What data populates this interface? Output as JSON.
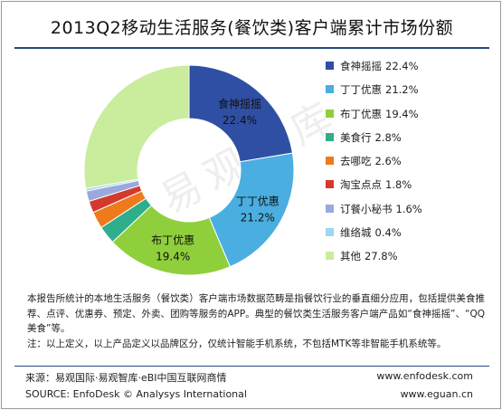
{
  "title": "2013Q2移动生活服务(餐饮类)客户端累计市场份额",
  "watermark": "易观智库",
  "chart_data": {
    "type": "pie",
    "variant": "donut",
    "title": "2013Q2移动生活服务(餐饮类)客户端累计市场份额",
    "unit": "%",
    "legend_position": "right",
    "series": [
      {
        "name": "食神摇摇",
        "value": 22.4,
        "value_label": "22.4%",
        "color": "#2e4fa3"
      },
      {
        "name": "丁丁优惠",
        "value": 21.2,
        "value_label": "21.2%",
        "color": "#4aaee0"
      },
      {
        "name": "布丁优惠",
        "value": 19.4,
        "value_label": "19.4%",
        "color": "#8fcf3c"
      },
      {
        "name": "美食行",
        "value": 2.8,
        "value_label": "2.8%",
        "color": "#2fae8c"
      },
      {
        "name": "去哪吃",
        "value": 2.6,
        "value_label": "2.6%",
        "color": "#ee7a1c"
      },
      {
        "name": "淘宝点点",
        "value": 1.8,
        "value_label": "1.8%",
        "color": "#d33a2c"
      },
      {
        "name": "订餐小秘书",
        "value": 1.6,
        "value_label": "1.6%",
        "color": "#9aa8de"
      },
      {
        "name": "维络城",
        "value": 0.4,
        "value_label": "0.4%",
        "color": "#9fd7f2"
      },
      {
        "name": "其他",
        "value": 27.8,
        "value_label": "27.8%",
        "color": "#c9ec9d"
      }
    ],
    "slice_labels": [
      {
        "name": "食神摇摇",
        "value": "22.4%"
      },
      {
        "name": "丁丁优惠",
        "value": "21.2%"
      },
      {
        "name": "布丁优惠",
        "value": "19.4%"
      }
    ]
  },
  "note": {
    "line1": "本报告所统计的本地生活服务（餐饮类）客户端市场数据范畴是指餐饮行业的垂直细分应用，包括提供美食推荐、点评、优惠券、预定、外卖、团购等服务的APP。典型的餐饮类生活服务客户端产品如“食神摇摇”、“QQ美食”等。",
    "line2": "注：以上定义，以上产品定义以品牌区分，仅统计智能手机系统，不包括MTK等非智能手机系统等。"
  },
  "footer": {
    "source_cn": "来源：易观国际·易观智库·eBI中国互联网商情",
    "source_en": "SOURCE: EnfoDesk © Analysys International",
    "url1": "www.enfodesk.com",
    "url2": "www.eguan.cn"
  }
}
